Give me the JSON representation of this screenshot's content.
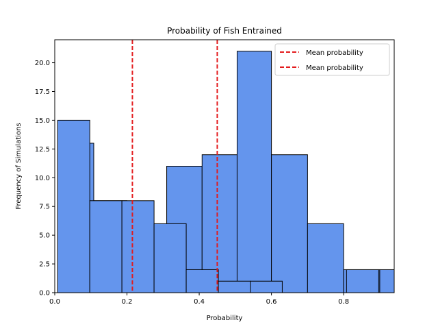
{
  "chart_data": {
    "type": "bar",
    "title": "Probability of Fish Entrained",
    "xlabel": "Probability",
    "ylabel": "Frequency of Simulations",
    "xlim": [
      0,
      0.94
    ],
    "ylim": [
      0,
      22
    ],
    "xticks": [
      0.0,
      0.2,
      0.4,
      0.6,
      0.8
    ],
    "xtick_labels": [
      "0.0",
      "0.2",
      "0.4",
      "0.6",
      "0.8"
    ],
    "yticks": [
      0.0,
      2.5,
      5.0,
      7.5,
      10.0,
      12.5,
      15.0,
      17.5,
      20.0
    ],
    "ytick_labels": [
      "0.0",
      "2.5",
      "5.0",
      "7.5",
      "10.0",
      "12.5",
      "15.0",
      "17.5",
      "20.0"
    ],
    "grid": false,
    "legend_position": "top-right",
    "bar_color": "#6495ED",
    "edge_color": "#000000",
    "series": [
      {
        "bins": [
          {
            "x0": 0.015,
            "x1": 0.108,
            "count": 13
          },
          {
            "x0": 0.108,
            "x1": 0.2,
            "count": 8
          },
          {
            "x0": 0.31,
            "x1": 0.408,
            "count": 11
          },
          {
            "x0": 0.408,
            "x1": 0.505,
            "count": 12
          },
          {
            "x0": 0.505,
            "x1": 0.6,
            "count": 21
          },
          {
            "x0": 0.6,
            "x1": 0.7,
            "count": 12
          },
          {
            "x0": 0.7,
            "x1": 0.8,
            "count": 6
          },
          {
            "x0": 0.8,
            "x1": 0.9,
            "count": 2
          },
          {
            "x0": 0.9,
            "x1": 0.94,
            "count": 2
          }
        ],
        "mean": 0.45
      },
      {
        "bins": [
          {
            "x0": 0.008,
            "x1": 0.097,
            "count": 15
          },
          {
            "x0": 0.097,
            "x1": 0.186,
            "count": 8
          },
          {
            "x0": 0.186,
            "x1": 0.275,
            "count": 8
          },
          {
            "x0": 0.275,
            "x1": 0.364,
            "count": 6
          },
          {
            "x0": 0.364,
            "x1": 0.453,
            "count": 2
          },
          {
            "x0": 0.453,
            "x1": 0.542,
            "count": 1
          },
          {
            "x0": 0.542,
            "x1": 0.63,
            "count": 1
          },
          {
            "x0": 0.63,
            "x1": 0.719,
            "count": 0
          },
          {
            "x0": 0.719,
            "x1": 0.808,
            "count": 0
          },
          {
            "x0": 0.808,
            "x1": 0.897,
            "count": 2
          }
        ],
        "mean": 0.215
      }
    ],
    "mean_lines": [
      {
        "x": 0.215,
        "color": "#e31a1c",
        "label": "Mean probability"
      },
      {
        "x": 0.45,
        "color": "#e31a1c",
        "label": "Mean probability"
      }
    ],
    "legend": [
      "Mean probability",
      "Mean probability"
    ]
  }
}
